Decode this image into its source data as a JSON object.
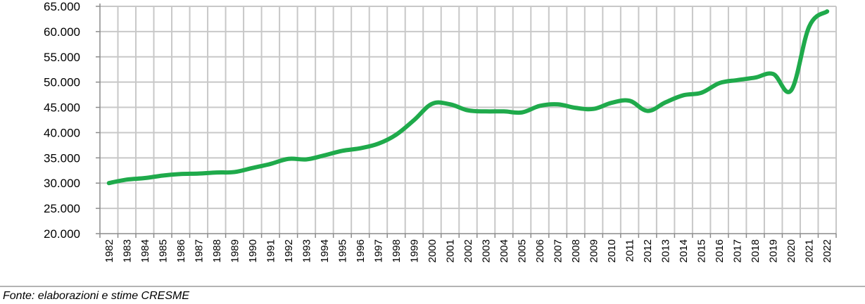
{
  "chart_data": {
    "type": "line",
    "title": "",
    "xlabel": "",
    "ylabel": "",
    "ylim": [
      20000,
      65000
    ],
    "yticks": [
      20000,
      25000,
      30000,
      35000,
      40000,
      45000,
      50000,
      55000,
      60000,
      65000
    ],
    "ytick_labels": [
      "20.000",
      "25.000",
      "30.000",
      "35.000",
      "40.000",
      "45.000",
      "50.000",
      "55.000",
      "60.000",
      "65.000"
    ],
    "grid": true,
    "line_color": "#1faa4b",
    "categories": [
      "1982",
      "1983",
      "1984",
      "1985",
      "1986",
      "1987",
      "1988",
      "1989",
      "1990",
      "1991",
      "1992",
      "1993",
      "1994",
      "1995",
      "1996",
      "1997",
      "1998",
      "1999",
      "2000",
      "2001",
      "2002",
      "2003",
      "2004",
      "2005",
      "2006",
      "2007",
      "2008",
      "2009",
      "2010",
      "2011",
      "2012",
      "2013",
      "2014",
      "2015",
      "2016",
      "2017",
      "2018",
      "2019",
      "2020",
      "2021",
      "2022"
    ],
    "series": [
      {
        "values": [
          30000,
          30700,
          31000,
          31500,
          31800,
          31900,
          32100,
          32200,
          33000,
          33800,
          34800,
          34700,
          35500,
          36400,
          36900,
          37800,
          39600,
          42500,
          45700,
          45600,
          44400,
          44200,
          44200,
          44000,
          45300,
          45600,
          44900,
          44700,
          45900,
          46300,
          44300,
          46000,
          47400,
          47900,
          49800,
          50400,
          50900,
          51600,
          48400,
          61000,
          64000
        ]
      }
    ]
  },
  "source_note": "Fonte: elaborazioni e stime CRESME"
}
